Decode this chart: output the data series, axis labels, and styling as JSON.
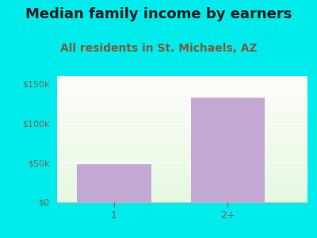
{
  "title": "Median family income by earners",
  "subtitle": "All residents in St. Michaels, AZ",
  "categories": [
    "1",
    "2+"
  ],
  "values": [
    48000,
    133000
  ],
  "bar_color": "#c4a8d4",
  "outer_bg": "#00ebeb",
  "title_color": "#1a1a1a",
  "subtitle_color": "#7a5c3a",
  "tick_color": "#7a6050",
  "axis_color": "#bbbbbb",
  "ylim": [
    0,
    160000
  ],
  "yticks": [
    0,
    50000,
    100000,
    150000
  ],
  "ytick_labels": [
    "$0",
    "$50k",
    "$100k",
    "$150k"
  ],
  "title_fontsize": 13,
  "subtitle_fontsize": 10,
  "plot_bg_bottom": "#ddf0d8",
  "plot_bg_top": "#f8fff5"
}
